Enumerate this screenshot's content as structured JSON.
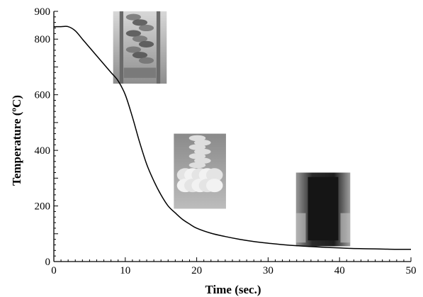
{
  "chart_data": {
    "type": "line",
    "title": "",
    "xlabel": "Time (sec.)",
    "ylabel": "Temperature (ºC)",
    "xlim": [
      0,
      50
    ],
    "ylim": [
      0,
      900
    ],
    "x_ticks": [
      0,
      10,
      20,
      30,
      40,
      50
    ],
    "y_ticks": [
      0,
      200,
      400,
      600,
      800,
      900
    ],
    "x_tick_labels": [
      "0",
      "10",
      "20",
      "30",
      "40",
      "50"
    ],
    "y_tick_labels": [
      "0",
      "200",
      "400",
      "600",
      "800",
      "900"
    ],
    "grid": false,
    "legend": "none",
    "series": [
      {
        "x": [
          0,
          1,
          2,
          3,
          4,
          5,
          6,
          7,
          8,
          9,
          10,
          11,
          12,
          13,
          14,
          15,
          16,
          17,
          18,
          19,
          20,
          22,
          24,
          26,
          28,
          30,
          32,
          34,
          36,
          38,
          40,
          42,
          44,
          46,
          48,
          50
        ],
        "y": [
          845,
          845,
          845,
          830,
          800,
          770,
          740,
          710,
          680,
          650,
          600,
          520,
          430,
          350,
          290,
          240,
          200,
          175,
          152,
          135,
          120,
          102,
          90,
          80,
          72,
          66,
          61,
          57,
          54,
          51,
          49,
          47,
          46,
          45,
          44,
          44
        ]
      }
    ],
    "annotations": [
      {
        "type": "image",
        "description": "photo-top",
        "x_range": [
          8.3,
          15.8
        ],
        "y_range": [
          640,
          900
        ]
      },
      {
        "type": "image",
        "description": "photo-middle",
        "x_range": [
          16.8,
          24.1
        ],
        "y_range": [
          190,
          460
        ]
      },
      {
        "type": "image",
        "description": "photo-bottom",
        "x_range": [
          33.9,
          41.5
        ],
        "y_range": [
          55,
          320
        ]
      }
    ]
  }
}
